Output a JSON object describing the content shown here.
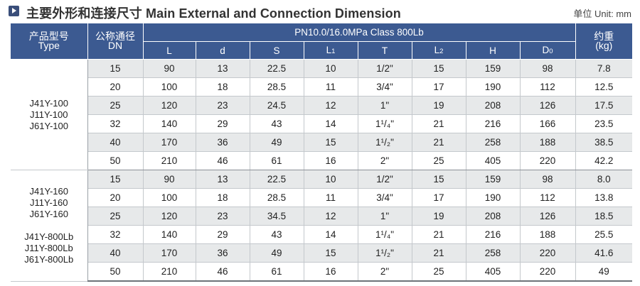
{
  "header": {
    "title": "主要外形和连接尺寸 Main External and Connection Dimension",
    "unit": "单位 Unit: mm"
  },
  "table": {
    "type_label_cn": "产品型号",
    "type_label_en": "Type",
    "dn_label_cn": "公称通径",
    "dn_label_en": "DN",
    "pressure_header": "PN10.0/16.0MPa  Class 800Lb",
    "weight_label_cn": "约重",
    "weight_label_en": "(kg)",
    "dim_columns": [
      {
        "main": "L",
        "sub": ""
      },
      {
        "main": "d",
        "sub": ""
      },
      {
        "main": "S",
        "sub": ""
      },
      {
        "main": "L",
        "sub": "1"
      },
      {
        "main": "T",
        "sub": ""
      },
      {
        "main": "L",
        "sub": "2"
      },
      {
        "main": "H",
        "sub": ""
      },
      {
        "main": "D",
        "sub": "0"
      }
    ],
    "groups": [
      {
        "types": [
          "J41Y-100",
          "J11Y-100",
          "J61Y-100"
        ],
        "rows": [
          {
            "dn": "15",
            "L": "90",
            "d": "13",
            "S": "22.5",
            "L1": "10",
            "T": "1/2\"",
            "L2": "15",
            "H": "159",
            "D0": "98",
            "kg": "7.8"
          },
          {
            "dn": "20",
            "L": "100",
            "d": "18",
            "S": "28.5",
            "L1": "11",
            "T": "3/4\"",
            "L2": "17",
            "H": "190",
            "D0": "112",
            "kg": "12.5"
          },
          {
            "dn": "25",
            "L": "120",
            "d": "23",
            "S": "24.5",
            "L1": "12",
            "T": "1\"",
            "L2": "19",
            "H": "208",
            "D0": "126",
            "kg": "17.5"
          },
          {
            "dn": "32",
            "L": "140",
            "d": "29",
            "S": "43",
            "L1": "14",
            "T": "1¹/₄\"",
            "L2": "21",
            "H": "216",
            "D0": "166",
            "kg": "23.5"
          },
          {
            "dn": "40",
            "L": "170",
            "d": "36",
            "S": "49",
            "L1": "15",
            "T": "1¹/₂\"",
            "L2": "21",
            "H": "258",
            "D0": "188",
            "kg": "38.5"
          },
          {
            "dn": "50",
            "L": "210",
            "d": "46",
            "S": "61",
            "L1": "16",
            "T": "2\"",
            "L2": "25",
            "H": "405",
            "D0": "220",
            "kg": "42.2"
          }
        ]
      },
      {
        "types": [
          "J41Y-160",
          "J11Y-160",
          "J61Y-160",
          "",
          "J41Y-800Lb",
          "J11Y-800Lb",
          "J61Y-800Lb"
        ],
        "rows": [
          {
            "dn": "15",
            "L": "90",
            "d": "13",
            "S": "22.5",
            "L1": "10",
            "T": "1/2\"",
            "L2": "15",
            "H": "159",
            "D0": "98",
            "kg": "8.0"
          },
          {
            "dn": "20",
            "L": "100",
            "d": "18",
            "S": "28.5",
            "L1": "11",
            "T": "3/4\"",
            "L2": "17",
            "H": "190",
            "D0": "112",
            "kg": "13.8"
          },
          {
            "dn": "25",
            "L": "120",
            "d": "23",
            "S": "34.5",
            "L1": "12",
            "T": "1\"",
            "L2": "19",
            "H": "208",
            "D0": "126",
            "kg": "18.5"
          },
          {
            "dn": "32",
            "L": "140",
            "d": "29",
            "S": "43",
            "L1": "14",
            "T": "1¹/₄\"",
            "L2": "21",
            "H": "216",
            "D0": "188",
            "kg": "25.5"
          },
          {
            "dn": "40",
            "L": "170",
            "d": "36",
            "S": "49",
            "L1": "15",
            "T": "1¹/₂\"",
            "L2": "21",
            "H": "258",
            "D0": "220",
            "kg": "41.6"
          },
          {
            "dn": "50",
            "L": "210",
            "d": "46",
            "S": "61",
            "L1": "16",
            "T": "2\"",
            "L2": "25",
            "H": "405",
            "D0": "220",
            "kg": "49"
          }
        ]
      }
    ]
  }
}
